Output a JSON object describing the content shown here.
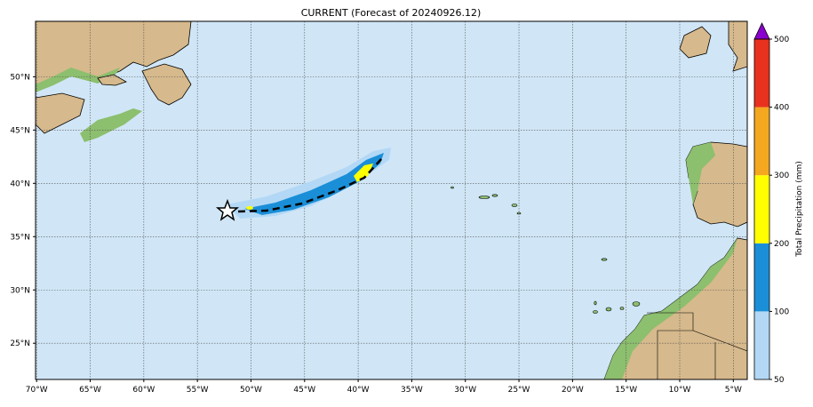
{
  "map": {
    "title": "CURRENT (Forecast of 20240926.12)",
    "xlim": [
      -70.1,
      -3.7
    ],
    "ylim": [
      21.6,
      55.2
    ],
    "xticks": [
      {
        "value": -70,
        "label": "70°W"
      },
      {
        "value": -65,
        "label": "65°W"
      },
      {
        "value": -60,
        "label": "60°W"
      },
      {
        "value": -55,
        "label": "55°W"
      },
      {
        "value": -50,
        "label": "50°W"
      },
      {
        "value": -45,
        "label": "45°W"
      },
      {
        "value": -40,
        "label": "40°W"
      },
      {
        "value": -35,
        "label": "35°W"
      },
      {
        "value": -30,
        "label": "30°W"
      },
      {
        "value": -25,
        "label": "25°W"
      },
      {
        "value": -20,
        "label": "20°W"
      },
      {
        "value": -15,
        "label": "15°W"
      },
      {
        "value": -10,
        "label": "10°W"
      },
      {
        "value": -5,
        "label": "5°W"
      }
    ],
    "yticks": [
      {
        "value": 25,
        "label": "25°N"
      },
      {
        "value": 30,
        "label": "30°N"
      },
      {
        "value": 35,
        "label": "35°N"
      },
      {
        "value": 40,
        "label": "40°N"
      },
      {
        "value": 45,
        "label": "45°N"
      },
      {
        "value": 50,
        "label": "50°N"
      }
    ],
    "grid": true,
    "ocean_color": "#d0e6f6",
    "colorbar": {
      "label": "Total Precipitation (mm)",
      "ticks": [
        50,
        100,
        200,
        300,
        400,
        500
      ],
      "colors": [
        "#b3d8f6",
        "#1a8fd8",
        "#ffff00",
        "#f4a81f",
        "#e8321e"
      ],
      "extend_color": "#8a00cc"
    }
  }
}
